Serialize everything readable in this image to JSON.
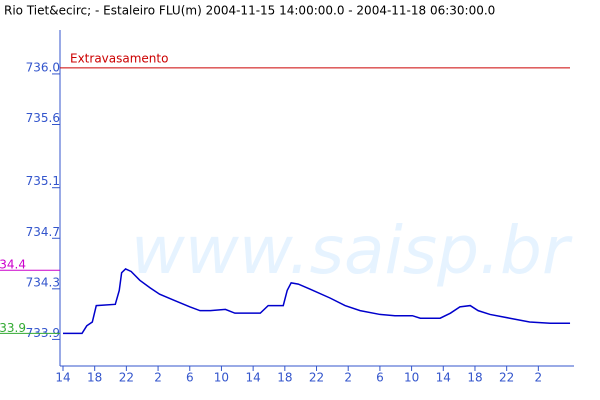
{
  "chart_data": {
    "type": "line",
    "title": "Rio Tiet&ecirc; - Estaleiro FLU(m) 2004-11-15 14:00:00.0 - 2004-11-18 06:30:00.0",
    "watermark": "www.saisp.br",
    "x": [
      0,
      2.4,
      3.0,
      3.7,
      4.2,
      6.6,
      7.1,
      7.4,
      7.9,
      8.6,
      9.7,
      11.0,
      12.2,
      14.1,
      16.0,
      17.3,
      18.6,
      20.5,
      21.7,
      24.9,
      25.9,
      27.8,
      28.3,
      28.8,
      29.7,
      31.2,
      33.7,
      35.6,
      37.5,
      40.0,
      41.9,
      44.1,
      45.1,
      47.6,
      48.9,
      50.1,
      51.4,
      52.4,
      53.9,
      56.4,
      58.9,
      61.5,
      64.0
    ],
    "series": [
      {
        "color": "#0000cc",
        "values": [
          733.9,
          733.9,
          733.96,
          733.99,
          734.12,
          734.13,
          734.24,
          734.38,
          734.41,
          734.39,
          734.32,
          734.26,
          734.21,
          734.16,
          734.11,
          734.08,
          734.08,
          734.09,
          734.06,
          734.06,
          734.12,
          734.12,
          734.24,
          734.3,
          734.29,
          734.25,
          734.18,
          734.12,
          734.08,
          734.05,
          734.04,
          734.04,
          734.02,
          734.02,
          734.06,
          734.11,
          734.12,
          734.08,
          734.05,
          734.02,
          733.99,
          733.98,
          733.98
        ]
      }
    ],
    "xlim": [
      0,
      64.5
    ],
    "xticks": [
      {
        "value": 0,
        "label": "14"
      },
      {
        "value": 4,
        "label": "18"
      },
      {
        "value": 8,
        "label": "22"
      },
      {
        "value": 12,
        "label": "2"
      },
      {
        "value": 16,
        "label": "6"
      },
      {
        "value": 20,
        "label": "10"
      },
      {
        "value": 24,
        "label": "14"
      },
      {
        "value": 28,
        "label": "18"
      },
      {
        "value": 32,
        "label": "22"
      },
      {
        "value": 36,
        "label": "2"
      },
      {
        "value": 40,
        "label": "6"
      },
      {
        "value": 44,
        "label": "10"
      },
      {
        "value": 48,
        "label": "14"
      },
      {
        "value": 52,
        "label": "18"
      },
      {
        "value": 56,
        "label": "22"
      },
      {
        "value": 60,
        "label": "2"
      }
    ],
    "ylim": [
      733.65,
      736.3
    ],
    "yticks": [
      {
        "value": 736,
        "label": "736.0"
      },
      735.6,
      735.1,
      734.7,
      734.3,
      733.9
    ],
    "thresholds": [
      {
        "label": "Extravasamento",
        "value": 736,
        "color": "#cc0000"
      }
    ],
    "side_markers": [
      {
        "label": "734.4",
        "value": 734.4,
        "color": "#cc00cc"
      },
      {
        "label": "733.9",
        "value": 733.9,
        "color": "#33aa33"
      }
    ]
  }
}
